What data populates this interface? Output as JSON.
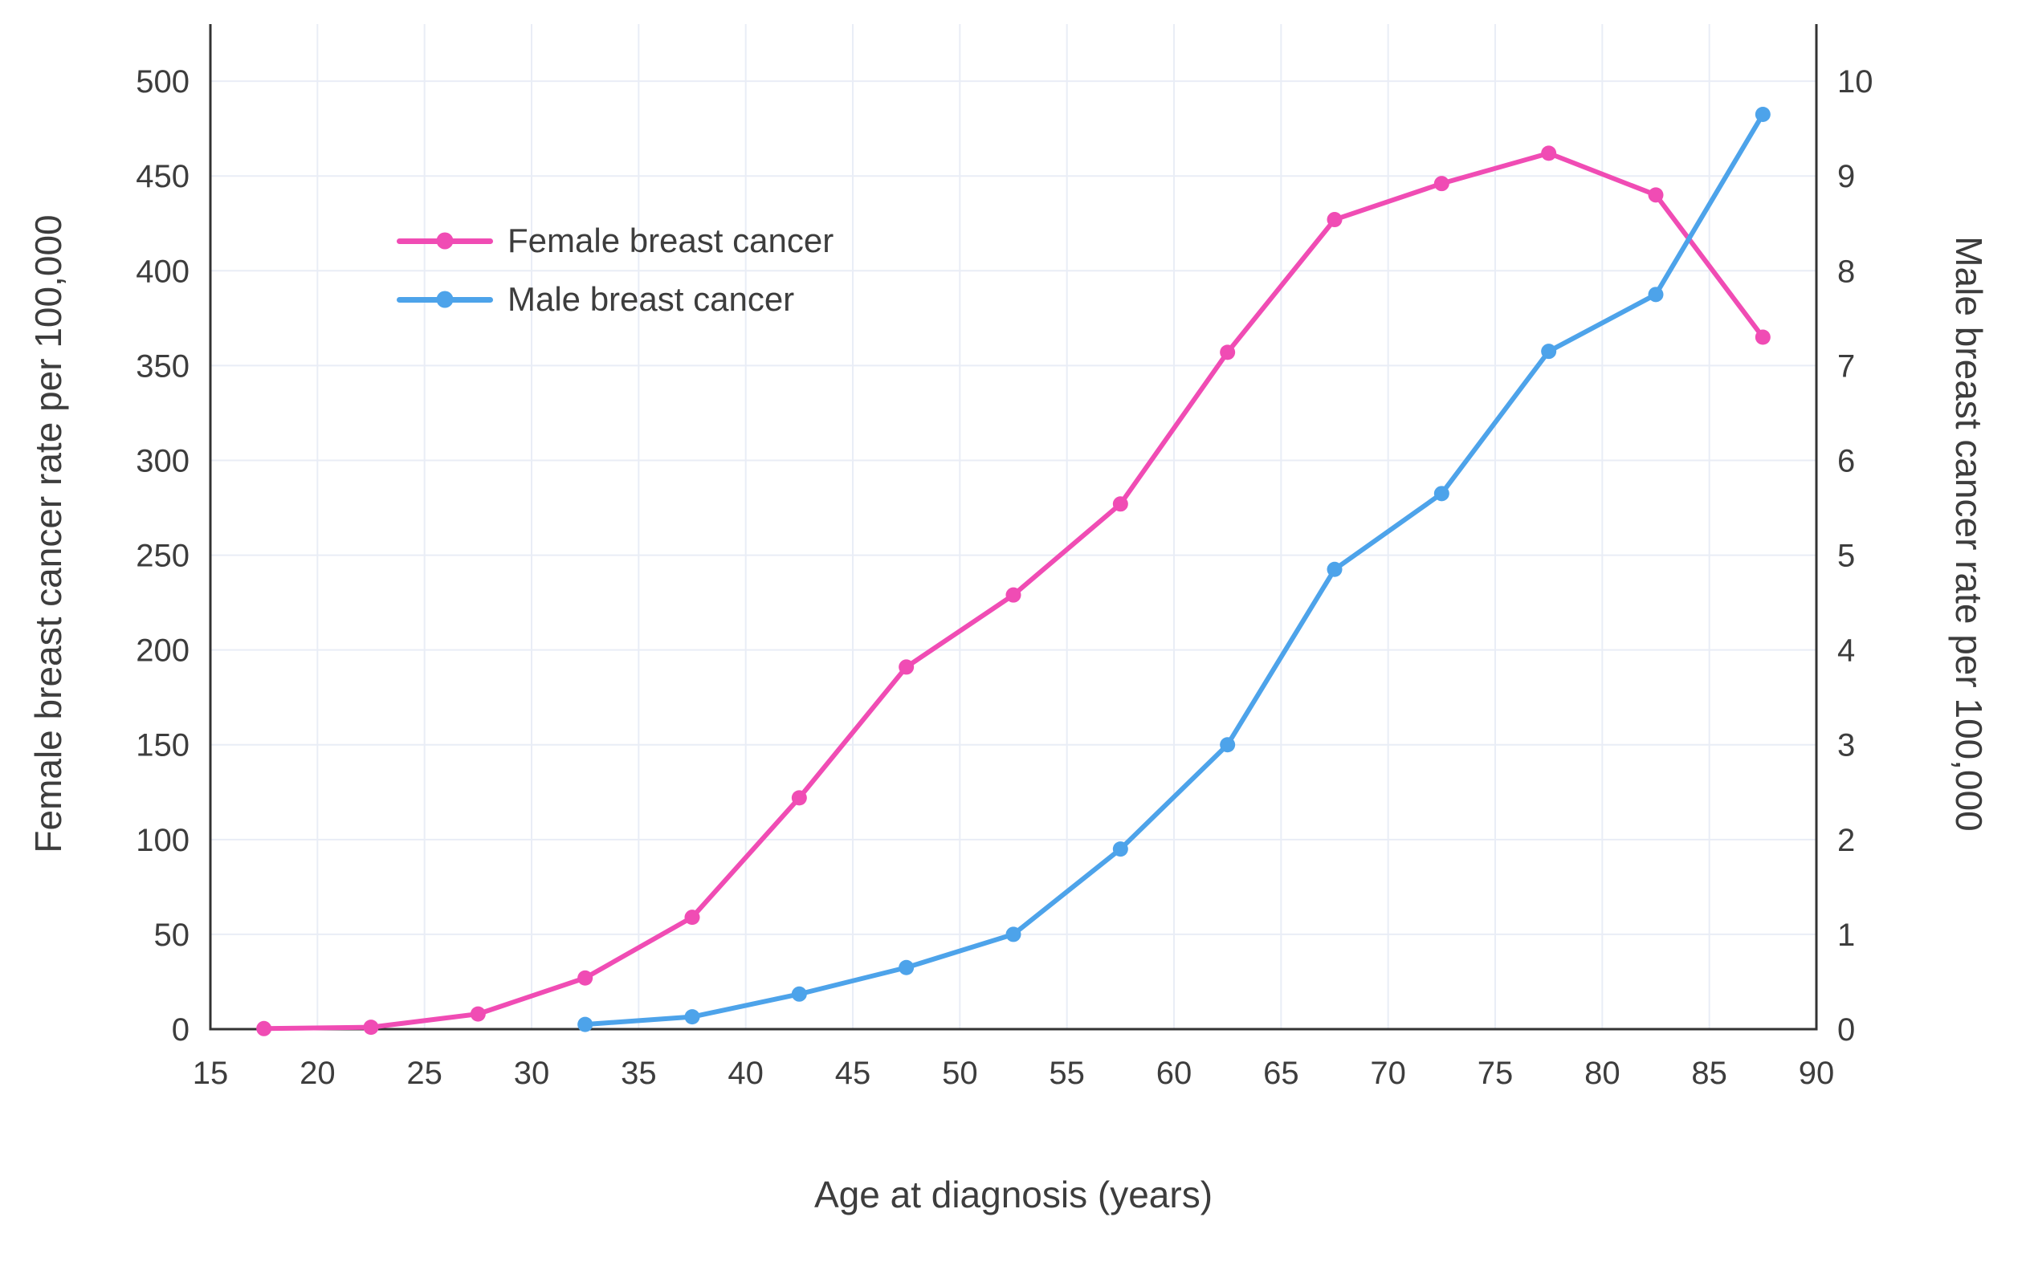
{
  "chart_data": {
    "type": "line",
    "title": "",
    "xlabel": "Age at diagnosis (years)",
    "ylabel_left": "Female breast cancer rate per 100,000",
    "ylabel_right": "Male breast cancer rate per 100,000",
    "x_ticks": [
      15,
      20,
      25,
      30,
      35,
      40,
      45,
      50,
      55,
      60,
      65,
      70,
      75,
      80,
      85,
      90
    ],
    "xlim": [
      15,
      90
    ],
    "left_ticks": [
      0,
      50,
      100,
      150,
      200,
      250,
      300,
      350,
      400,
      450,
      500
    ],
    "left_ylim": [
      0,
      500
    ],
    "right_ticks": [
      0,
      1,
      2,
      3,
      4,
      5,
      6,
      7,
      8,
      9,
      10
    ],
    "right_ylim": [
      0,
      10
    ],
    "grid": true,
    "legend_position": "upper-left-inside",
    "colors": {
      "female": "#f04cb4",
      "male": "#4da3ea",
      "grid": "#e9edf6",
      "axis": "#333333",
      "text": "#3d3d3d"
    },
    "series": [
      {
        "name": "Female breast cancer",
        "axis": "left",
        "color": "#f04cb4",
        "x": [
          17.5,
          22.5,
          27.5,
          32.5,
          37.5,
          42.5,
          47.5,
          52.5,
          57.5,
          62.5,
          67.5,
          72.5,
          77.5,
          82.5,
          87.5
        ],
        "y": [
          0.3,
          1,
          8,
          27,
          59,
          122,
          191,
          229,
          277,
          357,
          427,
          446,
          462,
          440,
          365
        ]
      },
      {
        "name": "Male breast cancer",
        "axis": "right",
        "color": "#4da3ea",
        "x": [
          32.5,
          37.5,
          42.5,
          47.5,
          52.5,
          57.5,
          62.5,
          67.5,
          72.5,
          77.5,
          82.5,
          87.5
        ],
        "y": [
          0.05,
          0.13,
          0.37,
          0.65,
          1.0,
          1.9,
          3.0,
          4.85,
          5.65,
          7.15,
          7.75,
          9.65
        ]
      }
    ]
  }
}
